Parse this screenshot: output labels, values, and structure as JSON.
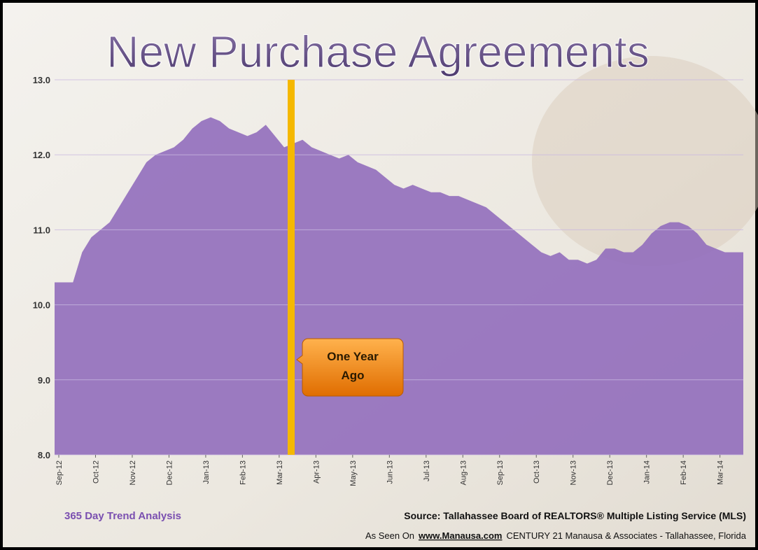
{
  "chart_data": {
    "type": "area",
    "title": "New Purchase Agreements",
    "categories": [
      "Sep-12",
      null,
      null,
      null,
      "Oct-12",
      null,
      null,
      null,
      "Nov-12",
      null,
      null,
      null,
      "Dec-12",
      null,
      null,
      null,
      "Jan-13",
      null,
      null,
      null,
      "Feb-13",
      null,
      null,
      null,
      "Mar-13",
      null,
      null,
      null,
      "Apr-13",
      null,
      null,
      null,
      "May-13",
      null,
      null,
      null,
      "Jun-13",
      null,
      null,
      null,
      "Jul-13",
      null,
      null,
      null,
      "Aug-13",
      null,
      null,
      null,
      "Sep-13",
      null,
      null,
      null,
      "Oct-13",
      null,
      null,
      null,
      "Nov-13",
      null,
      null,
      null,
      "Dec-13",
      null,
      null,
      null,
      "Jan-14",
      null,
      null,
      null,
      "Feb-14",
      null,
      null,
      null,
      "Mar-14",
      null,
      null,
      null
    ],
    "values": [
      10.3,
      10.3,
      10.3,
      10.7,
      10.9,
      11.0,
      11.1,
      11.3,
      11.5,
      11.7,
      11.9,
      12.0,
      12.05,
      12.1,
      12.2,
      12.35,
      12.45,
      12.5,
      12.45,
      12.35,
      12.3,
      12.25,
      12.3,
      12.4,
      12.25,
      12.1,
      12.15,
      12.2,
      12.1,
      12.05,
      12.0,
      11.95,
      12.0,
      11.9,
      11.85,
      11.8,
      11.7,
      11.6,
      11.55,
      11.6,
      11.55,
      11.5,
      11.5,
      11.45,
      11.45,
      11.4,
      11.35,
      11.3,
      11.2,
      11.1,
      11.0,
      10.9,
      10.8,
      10.7,
      10.65,
      10.7,
      10.6,
      10.6,
      10.55,
      10.6,
      10.75,
      10.75,
      10.7,
      10.7,
      10.8,
      10.95,
      11.05,
      11.1,
      11.1,
      11.05,
      10.95,
      10.8,
      10.75,
      10.7,
      10.7,
      10.7
    ],
    "color": "#9470bd",
    "ylim": [
      8,
      13
    ],
    "yticks": [
      {
        "value": 8,
        "label": "8.0"
      },
      {
        "value": 9,
        "label": "9.0"
      },
      {
        "value": 10,
        "label": "10.0"
      },
      {
        "value": 11,
        "label": "11.0"
      },
      {
        "value": 12,
        "label": "12.0"
      },
      {
        "value": 13,
        "label": "13.0"
      }
    ],
    "grid": true,
    "annotation": "One Year Ago",
    "footer": {
      "left": "365 Day Trend Analysis",
      "source": "Source: Tallahassee Board of REALTORS® Multiple Listing Service (MLS)",
      "seen_on": "As Seen On",
      "site": "www.Manausa.com",
      "company": "CENTURY 21 Manausa & Associates - Tallahassee, Florida"
    }
  }
}
